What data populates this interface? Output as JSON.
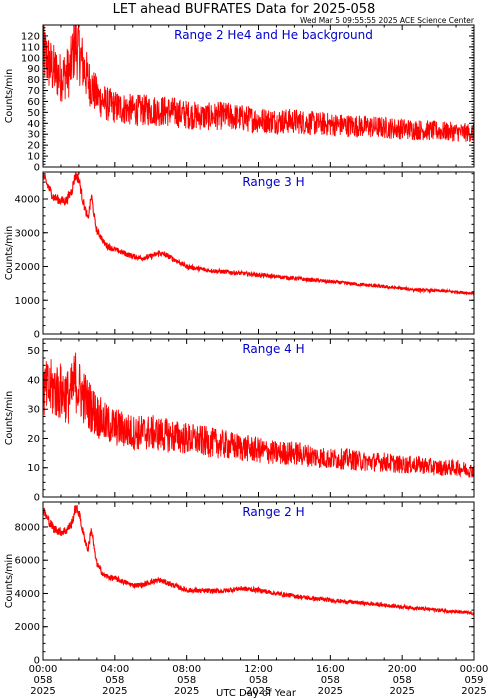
{
  "title": "LET ahead BUFRATES Data for 2025-058",
  "timestamp": "Wed Mar  5 09:55:55 2025 ACE Science Center",
  "xlabel": "UTC Day of Year",
  "colors": {
    "line": "#ff0000",
    "panel_title": "#0000cc",
    "axes": "#000000"
  },
  "x_ticks": [
    {
      "time": "00:00",
      "doy": "058",
      "year": "2025"
    },
    {
      "time": "04:00",
      "doy": "058",
      "year": "2025"
    },
    {
      "time": "08:00",
      "doy": "058",
      "year": "2025"
    },
    {
      "time": "12:00",
      "doy": "058",
      "year": "2025"
    },
    {
      "time": "16:00",
      "doy": "058",
      "year": "2025"
    },
    {
      "time": "20:00",
      "doy": "058",
      "year": "2025"
    },
    {
      "time": "00:00",
      "doy": "059",
      "year": "2025"
    }
  ],
  "chart_data": [
    {
      "type": "line",
      "title": "Range 2 He4 and He background",
      "ylabel": "Counts/min",
      "ylim": [
        0,
        130
      ],
      "yticks": [
        0,
        10,
        20,
        30,
        40,
        50,
        60,
        70,
        80,
        90,
        100,
        110,
        120
      ],
      "xlim": [
        0,
        24
      ],
      "x": [
        0,
        0.5,
        1,
        1.5,
        1.8,
        2,
        2.5,
        3,
        3.5,
        4,
        5,
        6,
        7,
        8,
        9,
        10,
        11,
        12,
        13,
        14,
        15,
        16,
        17,
        18,
        19,
        20,
        21,
        22,
        23,
        24
      ],
      "y": [
        105,
        90,
        82,
        88,
        115,
        105,
        80,
        65,
        58,
        55,
        52,
        52,
        51,
        48,
        46,
        47,
        45,
        43,
        42,
        42,
        40,
        39,
        38,
        37,
        36,
        35,
        34,
        33,
        32,
        31
      ]
    },
    {
      "type": "line",
      "title": "Range 3 H",
      "ylabel": "Counts/min",
      "ylim": [
        0,
        4800
      ],
      "yticks": [
        0,
        1000,
        2000,
        3000,
        4000
      ],
      "xlim": [
        0,
        24
      ],
      "x": [
        0,
        0.3,
        0.6,
        1,
        1.3,
        1.6,
        1.8,
        2,
        2.2,
        2.5,
        2.7,
        2.9,
        3,
        3.2,
        3.4,
        3.6,
        4,
        4.5,
        5,
        5.5,
        6,
        6.5,
        7,
        7.5,
        8,
        9,
        10,
        11,
        12,
        13,
        14,
        15,
        16,
        17,
        18,
        19,
        20,
        21,
        22,
        23,
        24
      ],
      "y": [
        4700,
        4350,
        4050,
        3950,
        3950,
        4250,
        4700,
        4600,
        4000,
        3400,
        4100,
        3300,
        3050,
        2900,
        2700,
        2600,
        2500,
        2400,
        2300,
        2250,
        2300,
        2400,
        2300,
        2150,
        2000,
        1900,
        1850,
        1800,
        1750,
        1700,
        1650,
        1600,
        1550,
        1500,
        1450,
        1400,
        1350,
        1300,
        1280,
        1250,
        1200
      ]
    },
    {
      "type": "line",
      "title": "Range 4 H",
      "ylabel": "Counts/min",
      "ylim": [
        0,
        54
      ],
      "yticks": [
        0,
        10,
        20,
        30,
        40,
        50
      ],
      "xlim": [
        0,
        24
      ],
      "x": [
        0,
        0.5,
        1,
        1.5,
        1.8,
        2,
        2.5,
        3,
        3.5,
        4,
        5,
        6,
        7,
        8,
        9,
        10,
        11,
        12,
        13,
        14,
        15,
        16,
        17,
        18,
        19,
        20,
        21,
        22,
        23,
        24
      ],
      "y": [
        36,
        37,
        36,
        34,
        40,
        37,
        32,
        28,
        25,
        24,
        22,
        22,
        21,
        20,
        19,
        18,
        17,
        16,
        15,
        15,
        14,
        13,
        13,
        12,
        12,
        11,
        11,
        10,
        10,
        9
      ]
    },
    {
      "type": "line",
      "title": "Range 2 H",
      "ylabel": "Counts/min",
      "ylim": [
        0,
        9500
      ],
      "yticks": [
        0,
        2000,
        4000,
        6000,
        8000
      ],
      "xlim": [
        0,
        24
      ],
      "x": [
        0,
        0.3,
        0.6,
        1,
        1.3,
        1.6,
        1.8,
        2,
        2.2,
        2.5,
        2.7,
        2.9,
        3,
        3.2,
        3.4,
        3.6,
        4,
        4.5,
        5,
        5.5,
        6,
        6.5,
        7,
        7.5,
        8,
        9,
        10,
        11,
        12,
        13,
        14,
        15,
        16,
        17,
        18,
        19,
        20,
        21,
        22,
        23,
        24
      ],
      "y": [
        9000,
        8400,
        7900,
        7700,
        7800,
        8200,
        9100,
        8900,
        7800,
        6600,
        7900,
        6300,
        5800,
        5400,
        5100,
        5000,
        4900,
        4700,
        4500,
        4500,
        4700,
        4800,
        4600,
        4400,
        4200,
        4150,
        4150,
        4300,
        4200,
        4000,
        3850,
        3700,
        3600,
        3500,
        3400,
        3300,
        3200,
        3100,
        3000,
        2900,
        2800
      ]
    }
  ]
}
